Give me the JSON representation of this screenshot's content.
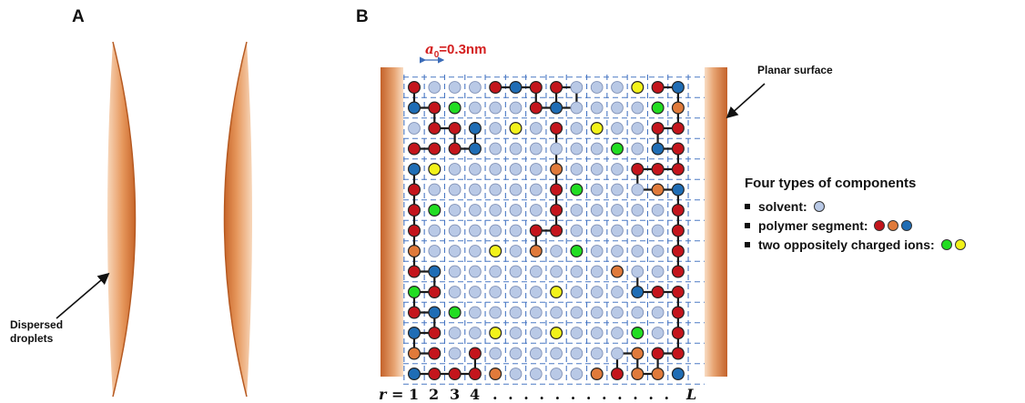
{
  "panels": {
    "a": "A",
    "b": "B"
  },
  "labels": {
    "droplets_line1": "Dispersed",
    "droplets_line2": "droplets",
    "planar_surface": "Planar surface",
    "a0_symbol": "a",
    "a0_sub": "0",
    "a0_value": "=0.3nm"
  },
  "legend": {
    "title": "Four types of components",
    "solvent": "solvent:",
    "polymer": "polymer segment:",
    "ions": "two oppositely charged ions:"
  },
  "axis": {
    "r_prefix": "r",
    "r_eq": "=",
    "ticks": [
      "1",
      "2",
      "3",
      "4"
    ],
    "ellipsis": ". . . . . . . . . . . .",
    "end": "L"
  },
  "colors": {
    "solvent": "#b9c9e6",
    "polymer_red": "#c4151c",
    "polymer_orange": "#e07a3a",
    "polymer_blue": "#1f6db5",
    "ion_green": "#22dd22",
    "ion_yellow": "#f2f21a",
    "grid": "#4a78c4",
    "surface_dark": "#c8662a",
    "surface_light": "#f7cfae"
  }
}
